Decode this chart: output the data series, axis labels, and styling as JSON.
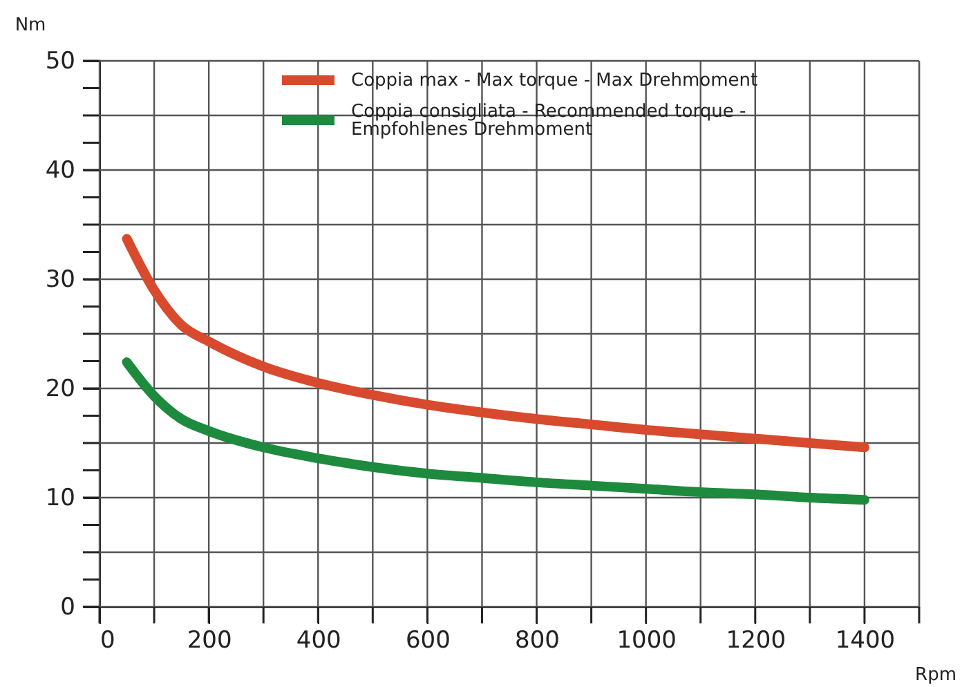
{
  "chart_data": {
    "type": "line",
    "xlabel": "Rpm",
    "ylabel": "Nm",
    "xlim": [
      0,
      1500
    ],
    "ylim": [
      0,
      50
    ],
    "xticks": [
      0,
      {
        "value": 100,
        "label": null
      },
      200,
      {
        "value": 300,
        "label": null
      },
      400,
      {
        "value": 500,
        "label": null
      },
      600,
      {
        "value": 700,
        "label": null
      },
      800,
      {
        "value": 900,
        "label": null
      },
      1000,
      {
        "value": 1100,
        "label": null
      },
      1200,
      {
        "value": 1300,
        "label": null
      },
      1400,
      {
        "value": 1500,
        "label": null
      }
    ],
    "yticks": [
      0,
      {
        "value": 2.5,
        "label": null
      },
      {
        "value": 5,
        "label": null
      },
      {
        "value": 7.5,
        "label": null
      },
      10,
      {
        "value": 12.5,
        "label": null
      },
      {
        "value": 15,
        "label": null
      },
      {
        "value": 17.5,
        "label": null
      },
      20,
      {
        "value": 22.5,
        "label": null
      },
      {
        "value": 25,
        "label": null
      },
      {
        "value": 27.5,
        "label": null
      },
      30,
      {
        "value": 32.5,
        "label": null
      },
      {
        "value": 35,
        "label": null
      },
      {
        "value": 37.5,
        "label": null
      },
      40,
      {
        "value": 42.5,
        "label": null
      },
      {
        "value": 45,
        "label": null
      },
      {
        "value": 47.5,
        "label": null
      },
      50
    ],
    "grid": true,
    "legend": "top",
    "line_style": "solid",
    "x": [
      50,
      100,
      150,
      200,
      300,
      400,
      500,
      600,
      700,
      800,
      900,
      1000,
      1100,
      1200,
      1300,
      1400
    ],
    "series": [
      {
        "name": "Coppia max - Max torque - Max Drehmoment",
        "color": "#d84a2e",
        "values": [
          33.7,
          29,
          25.8,
          24.3,
          22,
          20.5,
          19.4,
          18.5,
          17.8,
          17.2,
          16.7,
          16.2,
          15.8,
          15.4,
          15.0,
          14.6
        ]
      },
      {
        "name": "Coppia consigliata - Recommended torque -\nEmpfohlenes Drehmoment",
        "color": "#1e8a3e",
        "values": [
          22.4,
          19.3,
          17.2,
          16.1,
          14.6,
          13.6,
          12.8,
          12.2,
          11.8,
          11.4,
          11.1,
          10.8,
          10.5,
          10.3,
          10.0,
          9.8
        ]
      }
    ]
  }
}
